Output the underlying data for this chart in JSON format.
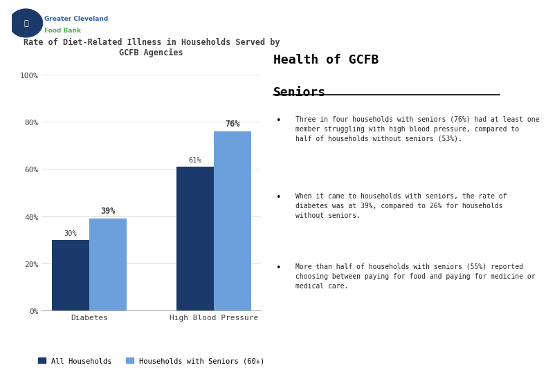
{
  "title_line1": "Rate of Diet-Related Illness in Households Served by",
  "title_line2": "GCFB Agencies",
  "categories": [
    "Diabetes",
    "High Blood Pressure"
  ],
  "all_households": [
    30,
    61
  ],
  "seniors_households": [
    39,
    76
  ],
  "bar_color_dark": "#1B3A6B",
  "bar_color_light": "#6CA0DC",
  "ylim": [
    0,
    100
  ],
  "yticks": [
    0,
    20,
    40,
    60,
    80,
    100
  ],
  "ytick_labels": [
    "0%",
    "20%",
    "40%",
    "60%",
    "80%",
    "100%"
  ],
  "legend_label1": "All Households",
  "legend_label2": "Households with Seniors (60+)",
  "right_title_line1": "Health of GCFB",
  "right_title_line2": "Seniors",
  "bullet1": "Three in four households with seniors (76%) had at least one\nmember struggling with high blood pressure, compared to\nhalf of households without seniors (53%).",
  "bullet2": "When it came to households with seniors, the rate of\ndiabetes was at 39%, compared to 26% for households\nwithout seniors.",
  "bullet3": "More than half of households with seniors (55%) reported\nchoosing between paying for food and paying for medicine or\nmedical care.",
  "header_text_line1": "Greater Cleveland",
  "header_text_line2": "Food Bank",
  "logo_color": "#1B3A6B",
  "logo_text_color1": "#2E5FA3",
  "logo_text_color2": "#4CAF50",
  "separator_color": "#AAAAAA",
  "footer_color": "#1B3A6B",
  "bg_color": "#FFFFFF",
  "title_color": "#404040",
  "axis_text_color": "#404040"
}
